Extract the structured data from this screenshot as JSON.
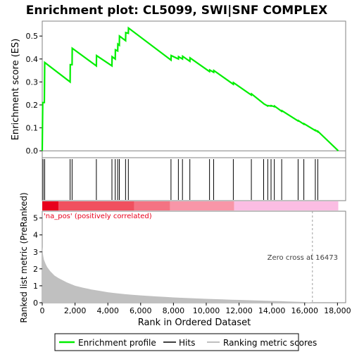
{
  "chart_data": {
    "type": "line",
    "title": "Enrichment plot: CL5099, SWI|SNF COMPLEX",
    "xlabel": "Rank in Ordered Dataset",
    "x_ticks": [
      "0",
      "2,000",
      "4,000",
      "6,000",
      "8,000",
      "10,000",
      "12,000",
      "14,000",
      "16,000",
      "18,000"
    ],
    "xlim": [
      0,
      18500
    ],
    "es_panel": {
      "ylabel": "Enrichment score (ES)",
      "ylim": [
        -0.03,
        0.565
      ],
      "y_ticks": [
        "0.0",
        "0.1",
        "0.2",
        "0.3",
        "0.4",
        "0.5"
      ],
      "series": [
        {
          "name": "Enrichment profile",
          "color": "#00ee00",
          "points": [
            [
              0,
              0.0
            ],
            [
              30,
              0.21
            ],
            [
              130,
              0.21
            ],
            [
              150,
              0.385
            ],
            [
              1700,
              0.3
            ],
            [
              1710,
              0.375
            ],
            [
              1820,
              0.375
            ],
            [
              1830,
              0.447
            ],
            [
              3300,
              0.37
            ],
            [
              3310,
              0.415
            ],
            [
              4250,
              0.37
            ],
            [
              4260,
              0.41
            ],
            [
              4450,
              0.4
            ],
            [
              4460,
              0.44
            ],
            [
              4600,
              0.435
            ],
            [
              4610,
              0.465
            ],
            [
              4700,
              0.46
            ],
            [
              4710,
              0.5
            ],
            [
              5080,
              0.48
            ],
            [
              5090,
              0.515
            ],
            [
              5250,
              0.512
            ],
            [
              5260,
              0.535
            ],
            [
              7850,
              0.395
            ],
            [
              7860,
              0.415
            ],
            [
              8300,
              0.4
            ],
            [
              8310,
              0.41
            ],
            [
              8550,
              0.4
            ],
            [
              8560,
              0.412
            ],
            [
              9000,
              0.39
            ],
            [
              9010,
              0.405
            ],
            [
              10200,
              0.345
            ],
            [
              10210,
              0.352
            ],
            [
              10450,
              0.342
            ],
            [
              10460,
              0.35
            ],
            [
              11650,
              0.29
            ],
            [
              11660,
              0.297
            ],
            [
              12750,
              0.243
            ],
            [
              12760,
              0.248
            ],
            [
              13500,
              0.206
            ],
            [
              13510,
              0.205
            ],
            [
              13750,
              0.195
            ],
            [
              13760,
              0.197
            ],
            [
              13950,
              0.195
            ],
            [
              13960,
              0.197
            ],
            [
              14150,
              0.192
            ],
            [
              14160,
              0.195
            ],
            [
              14600,
              0.172
            ],
            [
              14610,
              0.175
            ],
            [
              15600,
              0.13
            ],
            [
              15610,
              0.132
            ],
            [
              15950,
              0.116
            ],
            [
              15960,
              0.118
            ],
            [
              16650,
              0.088
            ],
            [
              16660,
              0.09
            ],
            [
              16800,
              0.083
            ],
            [
              16810,
              0.085
            ],
            [
              18050,
              0.0
            ]
          ]
        }
      ]
    },
    "hits": [
      50,
      150,
      1700,
      1820,
      3300,
      4250,
      4450,
      4600,
      4700,
      5080,
      5250,
      7850,
      8300,
      8550,
      9000,
      10200,
      10450,
      11650,
      12750,
      13500,
      13750,
      13950,
      14150,
      14600,
      15600,
      15950,
      16650,
      16800
    ],
    "heatmap": {
      "segments": [
        {
          "from": 0,
          "to": 1000,
          "color": "#e8001c"
        },
        {
          "from": 1000,
          "to": 5600,
          "color": "#f0505f"
        },
        {
          "from": 5600,
          "to": 7800,
          "color": "#f47383"
        },
        {
          "from": 7800,
          "to": 11700,
          "color": "#f896a8"
        },
        {
          "from": 11700,
          "to": 18050,
          "color": "#fbbde3"
        }
      ]
    },
    "metric_panel": {
      "ylabel": "Ranked list metric (PreRanked)",
      "ylim": [
        0,
        5.4
      ],
      "y_ticks": [
        "0",
        "1",
        "2",
        "3",
        "4",
        "5"
      ],
      "series": [
        {
          "name": "Ranking metric scores",
          "color": "#c0c0c0",
          "points": [
            [
              0,
              3.3
            ],
            [
              50,
              2.8
            ],
            [
              100,
              2.55
            ],
            [
              200,
              2.3
            ],
            [
              300,
              2.1
            ],
            [
              500,
              1.85
            ],
            [
              750,
              1.6
            ],
            [
              1000,
              1.45
            ],
            [
              1500,
              1.2
            ],
            [
              2000,
              1.0
            ],
            [
              2500,
              0.88
            ],
            [
              3000,
              0.78
            ],
            [
              3500,
              0.7
            ],
            [
              4000,
              0.62
            ],
            [
              4500,
              0.56
            ],
            [
              5000,
              0.51
            ],
            [
              5500,
              0.47
            ],
            [
              6000,
              0.43
            ],
            [
              6500,
              0.4
            ],
            [
              7000,
              0.37
            ],
            [
              7500,
              0.34
            ],
            [
              8000,
              0.31
            ],
            [
              8500,
              0.29
            ],
            [
              9000,
              0.27
            ],
            [
              9500,
              0.25
            ],
            [
              10000,
              0.23
            ],
            [
              10500,
              0.21
            ],
            [
              11000,
              0.195
            ],
            [
              11500,
              0.18
            ],
            [
              12000,
              0.165
            ],
            [
              12500,
              0.15
            ],
            [
              13000,
              0.135
            ],
            [
              13500,
              0.12
            ],
            [
              14000,
              0.105
            ],
            [
              14500,
              0.09
            ],
            [
              15000,
              0.075
            ],
            [
              15500,
              0.06
            ],
            [
              16000,
              0.04
            ],
            [
              16473,
              0.0
            ]
          ]
        }
      ],
      "annotations": {
        "positive_label": "'na_pos' (positively correlated)",
        "zero_cross_label": "Zero cross at 16473",
        "zero_cross_x": 16473
      }
    },
    "legend": {
      "placement": "bottom",
      "entries": [
        {
          "label": "Enrichment profile",
          "color": "#00ee00"
        },
        {
          "label": "Hits",
          "color": "#000000"
        },
        {
          "label": "Ranking metric scores",
          "color": "#c0c0c0"
        }
      ]
    }
  }
}
